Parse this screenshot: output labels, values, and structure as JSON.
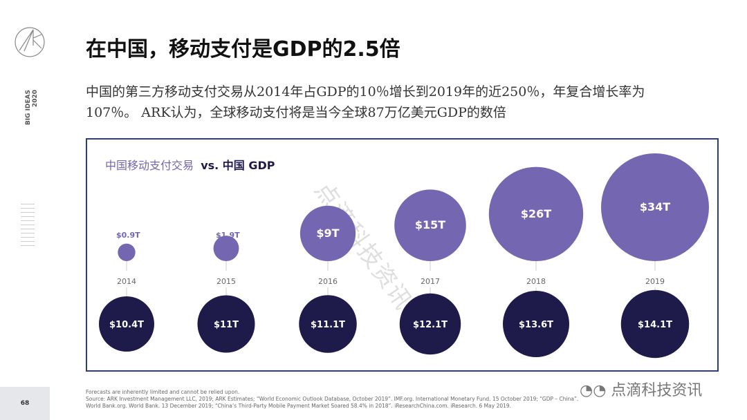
{
  "title": "在中国，移动支付是GDP的2.5倍",
  "subtitle": "中国的第三方移动支付交易从2014年占GDP的10％增长到2019年的近250％，年复合增长率为107％。 ARK认为，全球移动支付将是当今全球87万亿美元GDP的数倍",
  "side_label": [
    "BIG IDEAS",
    "2020"
  ],
  "page_number": "68",
  "footnotes": [
    "Forecasts are inherently limited and cannot be relied upon.",
    "Source: ARK Investment Management LLC, 2019; ARK Estimates; “World Economic Outlook Database, October 2019”. IMF.org. International Monetary Fund. 15 October 2019; “GDP – China”.",
    "World Bank.org. World Bank. 13 December 2019; “China’s Third-Party Mobile Payment Market Soared 58.4% in 2018”. iResearchChina.com. iResearch. 6 May 2019."
  ],
  "watermark": "点滴科技资讯",
  "brand_mark": "点滴科技资讯",
  "colors": {
    "mobile_payment": "#7466b0",
    "gdp": "#1e1a4a",
    "frame": "#2e3f6b"
  },
  "chart_data": {
    "type": "bubble",
    "title_part1": "中国移动支付交易",
    "title_part2": "vs. 中国 GDP",
    "categories": [
      "2014",
      "2015",
      "2016",
      "2017",
      "2018",
      "2019"
    ],
    "series": [
      {
        "name": "中国移动支付交易",
        "values": [
          0.9,
          1.9,
          9,
          15,
          26,
          34
        ],
        "labels": [
          "$0.9T",
          "$1.9T",
          "$9T",
          "$15T",
          "$26T",
          "$34T"
        ]
      },
      {
        "name": "中国 GDP",
        "values": [
          10.4,
          11,
          11.1,
          12.1,
          13.6,
          14.1
        ],
        "labels": [
          "$10.4T",
          "$11T",
          "$11.1T",
          "$12.1T",
          "$13.6T",
          "$14.1T"
        ]
      }
    ]
  }
}
